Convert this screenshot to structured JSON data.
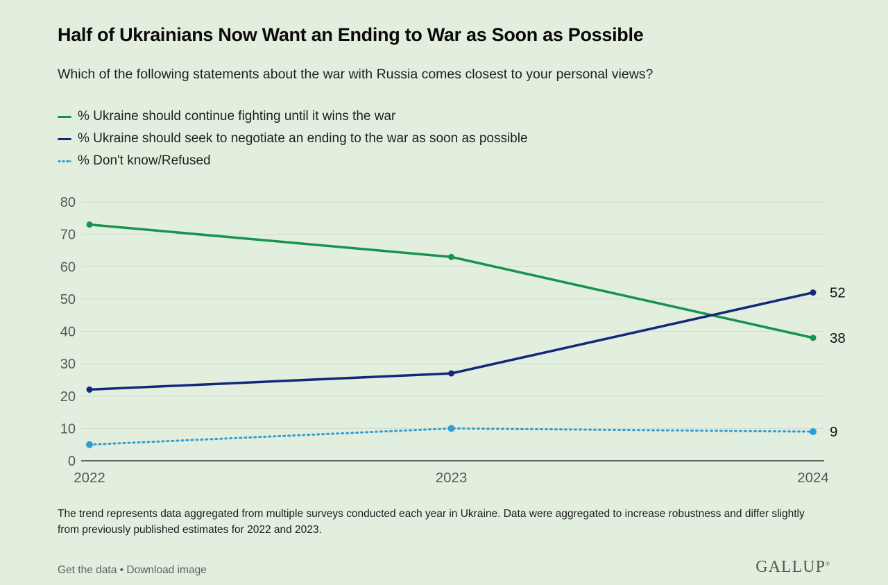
{
  "header": {
    "title": "Half of Ukrainians Now Want an Ending to War as Soon as Possible",
    "subtitle": "Which of the following statements about the war with Russia comes closest to your personal views?"
  },
  "chart_data": {
    "type": "line",
    "x_labels": [
      "2022",
      "2023",
      "2024"
    ],
    "series": [
      {
        "name": "% Ukraine should continue fighting until it wins the war",
        "values": [
          73,
          63,
          38
        ],
        "color": "#18934f",
        "line_style": "solid",
        "end_label": "38"
      },
      {
        "name": "% Ukraine should seek to negotiate an ending to the war as soon as possible",
        "values": [
          22,
          27,
          52
        ],
        "color": "#14287a",
        "line_style": "solid",
        "end_label": "52"
      },
      {
        "name": "% Don't know/Refused",
        "values": [
          5,
          10,
          9
        ],
        "color": "#2f9ed5",
        "line_style": "dotted",
        "end_label": "9"
      }
    ],
    "ylim": [
      0,
      80
    ],
    "ytick_interval": 10,
    "ytick_labels": [
      "0",
      "10",
      "20",
      "30",
      "40",
      "50",
      "60",
      "70",
      "80"
    ],
    "grid": true,
    "legend_position": "top-left"
  },
  "theme": {
    "background": "#e3efde",
    "grid_color": "#d5ded1",
    "axis_color": "#3b3b3b",
    "tick_label_color": "#54575b",
    "value_label_color": "#111111"
  },
  "footnote": "The trend represents data aggregated from multiple surveys conducted each year in Ukraine. Data were aggregated to increase robustness and differ slightly from previously published estimates for 2022 and 2023.",
  "footer": {
    "get_the_data_label": "Get the data",
    "separator": "•",
    "download_image_label": "Download image",
    "brand": "GALLUP",
    "brand_mark": "®"
  }
}
